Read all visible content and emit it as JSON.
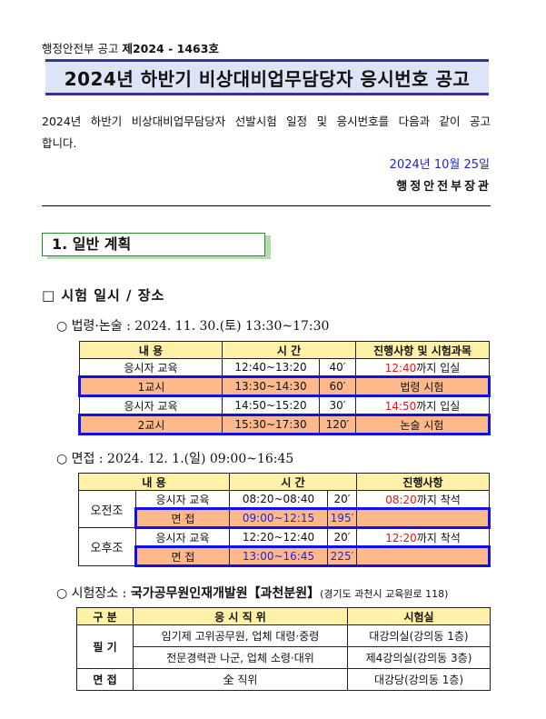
{
  "notice_no": {
    "prefix": "행정안전부 공고",
    "number": "제2024 - 1463호"
  },
  "title": "2024년 하반기 비상대비업무담당자 응시번호 공고",
  "body": "2024년 하반기 비상대비업무담당자 선발시험 일정 및 응시번호를 다음과 같이 공고합니다.",
  "date": "2024년 10월 25일",
  "signer": "행정안전부장관",
  "section1": "1. 일반 계획",
  "subsection": "□ 시험 일시 / 장소",
  "written": {
    "heading": "○ 법령·논술 : 2024. 11. 30.(토) 13:30~17:30",
    "headers": [
      "내    용",
      "시   간",
      "진행사항 및 시험과목"
    ],
    "rows": [
      {
        "item": "응시자 교육",
        "time": "12:40~13:20",
        "dur": "40′",
        "note_red": "12:40",
        "note": "까지 입실",
        "hl": false
      },
      {
        "item": "1교시",
        "time": "13:30~14:30",
        "dur": "60′",
        "note_red": "",
        "note": "법령 시험",
        "hl": true
      },
      {
        "item": "응시자 교육",
        "time": "14:50~15:20",
        "dur": "30′",
        "note_red": "14:50",
        "note": "까지 입실",
        "hl": false
      },
      {
        "item": "2교시",
        "time": "15:30~17:30",
        "dur": "120′",
        "note_red": "",
        "note": "논술 시험",
        "hl": true
      }
    ]
  },
  "interview": {
    "heading": "○ 면접 : 2024. 12. 1.(일) 09:00~16:45",
    "headers": [
      "내    용",
      "시   간",
      "진행사항"
    ],
    "groups": [
      {
        "name": "오전조",
        "rows": [
          {
            "item": "응시자 교육",
            "time": "08:20~08:40",
            "dur": "20′",
            "note_red": "08:20",
            "note": "까지 착석"
          },
          {
            "item": "면      접",
            "time": "09:00~12:15",
            "dur": "195′",
            "note_red": "",
            "note": ""
          }
        ]
      },
      {
        "name": "오후조",
        "rows": [
          {
            "item": "응시자 교육",
            "time": "12:20~12:40",
            "dur": "20′",
            "note_red": "12:20",
            "note": "까지 착석"
          },
          {
            "item": "면      접",
            "time": "13:00~16:45",
            "dur": "225′",
            "note_red": "",
            "note": ""
          }
        ]
      }
    ]
  },
  "venue": {
    "label": "○ 시험장소 : ",
    "name": "국가공무원인재개발원【과천분원】",
    "address": "(경기도 과천시 교육원로 118)",
    "headers": [
      "구 분",
      "응 시 직 위",
      "시험실"
    ],
    "written_label": "필 기",
    "written_rows": [
      {
        "pos": "임기제 고위공무원, 업체 대령·중령",
        "room": "대강의실(강의동 1층)"
      },
      {
        "pos": "전문경력관 나군, 업체 소령·대위",
        "room": "제4강의실(강의동 3층)"
      }
    ],
    "interview_label": "면 접",
    "interview_row": {
      "pos": "全 직위",
      "room": "대강당(강의동 1층)"
    }
  },
  "colors": {
    "header_bg": "#fff2a8",
    "highlight_bg": "#fdb98a",
    "highlight_border": "#1010ee",
    "title_bg": "#dde4f5"
  }
}
